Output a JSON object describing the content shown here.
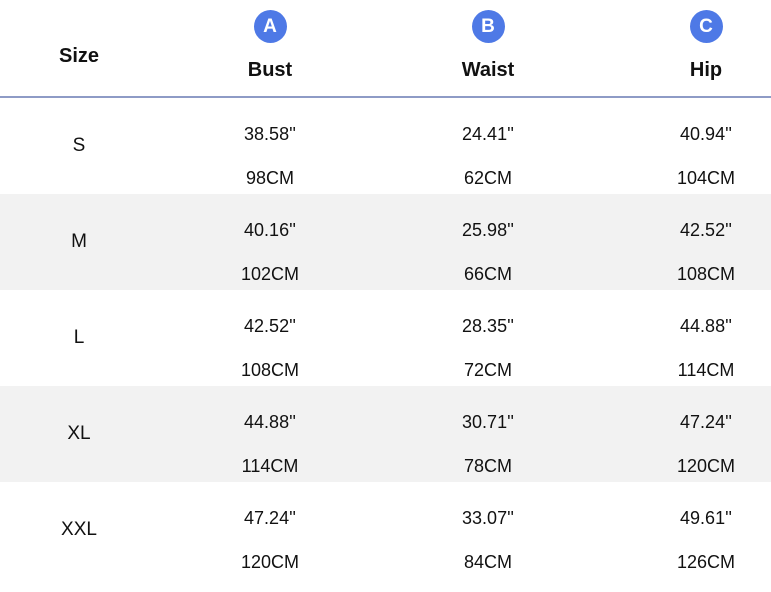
{
  "header": {
    "size_label": "Size",
    "columns": [
      {
        "badge": "A",
        "label": "Bust"
      },
      {
        "badge": "B",
        "label": "Waist"
      },
      {
        "badge": "C",
        "label": "Hip"
      }
    ]
  },
  "rows": [
    {
      "size": "S",
      "bust_in": "38.58''",
      "bust_cm": "98CM",
      "waist_in": "24.41''",
      "waist_cm": "62CM",
      "hip_in": "40.94''",
      "hip_cm": "104CM"
    },
    {
      "size": "M",
      "bust_in": "40.16''",
      "bust_cm": "102CM",
      "waist_in": "25.98''",
      "waist_cm": "66CM",
      "hip_in": "42.52''",
      "hip_cm": "108CM"
    },
    {
      "size": "L",
      "bust_in": "42.52''",
      "bust_cm": "108CM",
      "waist_in": "28.35''",
      "waist_cm": "72CM",
      "hip_in": "44.88''",
      "hip_cm": "114CM"
    },
    {
      "size": "XL",
      "bust_in": "44.88''",
      "bust_cm": "114CM",
      "waist_in": "30.71''",
      "waist_cm": "78CM",
      "hip_in": "47.24''",
      "hip_cm": "120CM"
    },
    {
      "size": "XXL",
      "bust_in": "47.24''",
      "bust_cm": "120CM",
      "waist_in": "33.07''",
      "waist_cm": "84CM",
      "hip_in": "49.61''",
      "hip_cm": "126CM"
    }
  ],
  "colors": {
    "badge": "#4e79e6",
    "header_rule": "#8e9bc6",
    "alt_row": "#f2f2f2"
  }
}
